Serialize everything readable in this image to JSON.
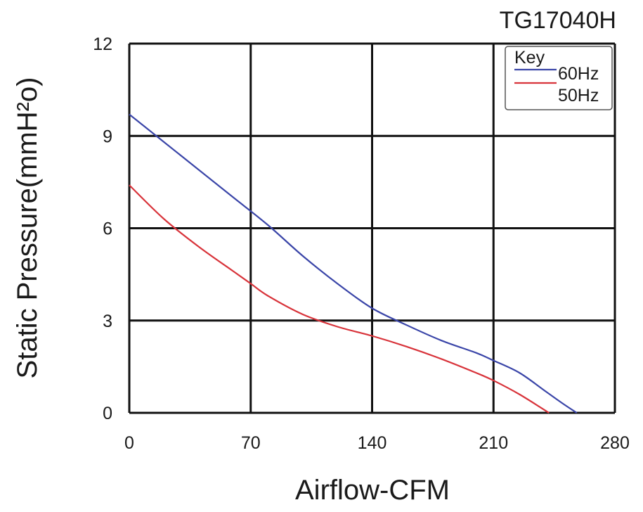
{
  "chart_data": {
    "type": "line",
    "title": "TG17040H",
    "xlabel": "Airflow-CFM",
    "ylabel": "Static Pressure(mmH²o)",
    "xlim": [
      0,
      280
    ],
    "ylim": [
      0,
      12
    ],
    "xticks": [
      0,
      70,
      140,
      210,
      280
    ],
    "yticks": [
      0,
      3,
      6,
      9,
      12
    ],
    "grid": true,
    "legend": {
      "title": "Key",
      "position": "top-right"
    },
    "series": [
      {
        "name": "60Hz",
        "color": "#3a45a8",
        "x": [
          0,
          20,
          40,
          60,
          80,
          100,
          120,
          140,
          160,
          180,
          200,
          210,
          225,
          240,
          250,
          258
        ],
        "y": [
          9.7,
          8.8,
          7.9,
          7.0,
          6.1,
          5.1,
          4.2,
          3.4,
          2.85,
          2.35,
          1.95,
          1.7,
          1.3,
          0.7,
          0.3,
          0
        ]
      },
      {
        "name": "50Hz",
        "color": "#d8333a",
        "x": [
          0,
          20,
          40,
          60,
          70,
          80,
          100,
          120,
          140,
          160,
          180,
          200,
          210,
          225,
          242
        ],
        "y": [
          7.4,
          6.3,
          5.4,
          4.6,
          4.2,
          3.8,
          3.2,
          2.8,
          2.5,
          2.15,
          1.75,
          1.3,
          1.05,
          0.6,
          0
        ]
      }
    ]
  }
}
